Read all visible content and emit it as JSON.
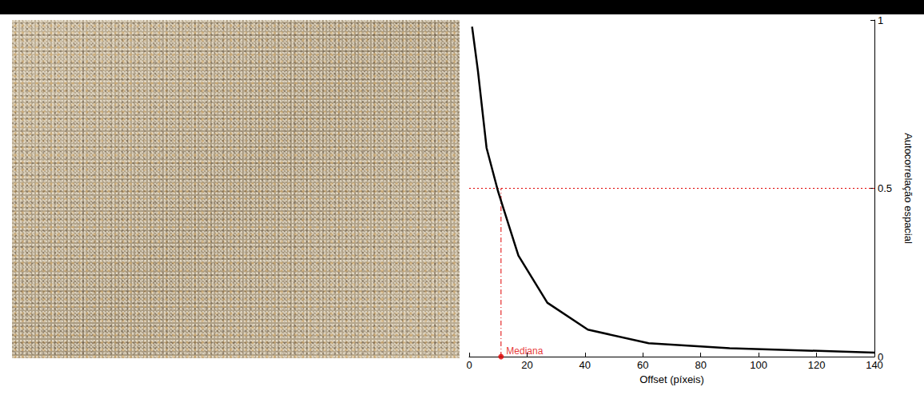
{
  "chart_data": {
    "type": "line",
    "xlabel": "Offset (píxeis)",
    "ylabel": "Autocorrelação espacial",
    "x": [
      1,
      3,
      6,
      10,
      17,
      27,
      41,
      62,
      90,
      140
    ],
    "values": [
      0.98,
      0.85,
      0.62,
      0.49,
      0.3,
      0.16,
      0.08,
      0.04,
      0.025,
      0.012
    ],
    "color": "#000000",
    "xlim": [
      0,
      140
    ],
    "xticks": [
      0,
      20,
      40,
      60,
      80,
      100,
      120,
      140
    ],
    "ylim": [
      0,
      1
    ],
    "yticks": [
      0,
      0.5,
      1
    ],
    "grid": false,
    "median": {
      "x": 11,
      "y": 0.5,
      "label": "Mediana",
      "color": "#e00000"
    }
  }
}
